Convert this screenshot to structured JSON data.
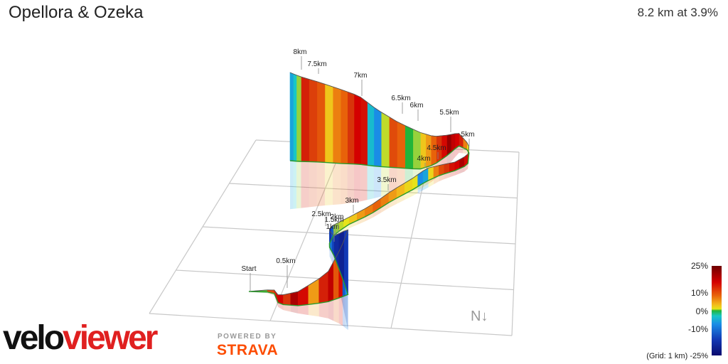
{
  "header": {
    "title": "Opellora & Ozeka",
    "summary": "8.2 km at 3.9%"
  },
  "chart_data": {
    "type": "area",
    "title": "Opellora & Ozeka",
    "subtitle": "8.2 km at 3.9%",
    "xlabel": "",
    "ylabel": "",
    "distance_unit": "km",
    "total_distance_km": 8.2,
    "average_gradient_pct": 3.9,
    "grid": true,
    "grid_spacing_label": "(Grid: 1 km)",
    "north_arrow": "N↓",
    "marker_labels": [
      "Start",
      "0.5km",
      "1km",
      "1.5km",
      "2km",
      "2.5km",
      "3km",
      "3.5km",
      "4km",
      "4.5km",
      "5km",
      "5.5km",
      "6km",
      "6.5km",
      "7km",
      "7.5km",
      "8km"
    ],
    "segments_gradient_pct": [
      0,
      1,
      12,
      15,
      18,
      20,
      14,
      22,
      19,
      8,
      16,
      21,
      11,
      19,
      -12,
      -8,
      -15,
      -20,
      -18,
      -14,
      -10,
      -6,
      -16,
      -12,
      2,
      3,
      4,
      6,
      8,
      9,
      10,
      9,
      8,
      7,
      5,
      4,
      -8,
      -6,
      5,
      9,
      12,
      14,
      18,
      20,
      22,
      19,
      16,
      9,
      4,
      9,
      16,
      20,
      21,
      23,
      19,
      14,
      10,
      8,
      6,
      2,
      0,
      10,
      12,
      3,
      -8,
      -4,
      18,
      20,
      14,
      10,
      9,
      6,
      11,
      13,
      16,
      2,
      -3,
      -6
    ],
    "colorscale": {
      "ticks": [
        "25%",
        "10%",
        "0%",
        "-10%",
        "(Grid: 1 km) -25%"
      ],
      "max_pct": 25,
      "min_pct": -25
    }
  },
  "branding": {
    "logo_part1": "velo",
    "logo_part2": "viewer",
    "powered_by": "POWERED BY",
    "strava": "STRAVA"
  }
}
